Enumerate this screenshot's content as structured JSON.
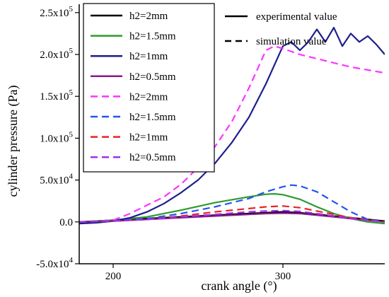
{
  "chart_data": {
    "type": "line",
    "title": "",
    "xlabel": "crank angle (°)",
    "ylabel": "cylinder pressure (Pa)",
    "xlim": [
      180,
      360
    ],
    "ylim": [
      -50000,
      260000
    ],
    "xticks": [
      200,
      300
    ],
    "xtick_labels": [
      "200",
      "300"
    ],
    "yticks": [
      -50000,
      0,
      50000,
      100000,
      150000,
      200000,
      250000
    ],
    "ytick_labels": [
      {
        "mantissa": "-5.0x10",
        "exp": "4"
      },
      {
        "mantissa": "0.0",
        "exp": ""
      },
      {
        "mantissa": "5.0x10",
        "exp": "4"
      },
      {
        "mantissa": "1.0x10",
        "exp": "5"
      },
      {
        "mantissa": "1.5x10",
        "exp": "5"
      },
      {
        "mantissa": "2.0x10",
        "exp": "5"
      },
      {
        "mantissa": "2.5x10",
        "exp": "5"
      }
    ],
    "legend_main": [
      {
        "label": "h2=2mm",
        "color": "#000000",
        "dash": "solid"
      },
      {
        "label": "h2=1.5mm",
        "color": "#2e9a2e",
        "dash": "solid"
      },
      {
        "label": "h2=1mm",
        "color": "#1e1e8c",
        "dash": "solid"
      },
      {
        "label": "h2=0.5mm",
        "color": "#8b1a8b",
        "dash": "solid"
      },
      {
        "label": "h2=2mm",
        "color": "#ff33ff",
        "dash": "dashed"
      },
      {
        "label": "h2=1.5mm",
        "color": "#2255ee",
        "dash": "dashed"
      },
      {
        "label": "h2=1mm",
        "color": "#ee2222",
        "dash": "dashed"
      },
      {
        "label": "h2=0.5mm",
        "color": "#9933ee",
        "dash": "dashed"
      }
    ],
    "legend_style": [
      {
        "label": "experimental value",
        "dash": "solid"
      },
      {
        "label": "simulation value",
        "dash": "dashed"
      }
    ],
    "series": [
      {
        "name": "h2=2mm",
        "kind": "experimental",
        "color": "#000000",
        "dash": "solid",
        "x": [
          180,
          200,
          220,
          240,
          260,
          280,
          290,
          300,
          310,
          320,
          340,
          360
        ],
        "y": [
          0,
          2000,
          4000,
          6000,
          8000,
          10000,
          11000,
          12000,
          11000,
          9000,
          5000,
          1000
        ]
      },
      {
        "name": "h2=1.5mm",
        "kind": "experimental",
        "color": "#2e9a2e",
        "dash": "solid",
        "x": [
          180,
          200,
          220,
          240,
          260,
          280,
          290,
          295,
          300,
          310,
          320,
          330,
          340,
          350,
          360
        ],
        "y": [
          0,
          2000,
          6000,
          14000,
          23000,
          30000,
          33000,
          33500,
          32500,
          27000,
          18000,
          10000,
          4000,
          0,
          -2000
        ]
      },
      {
        "name": "h2=1mm",
        "kind": "experimental",
        "color": "#1e1e8c",
        "dash": "solid",
        "x": [
          180,
          190,
          200,
          210,
          220,
          230,
          240,
          250,
          260,
          270,
          280,
          290,
          300,
          305,
          310,
          315,
          320,
          325,
          330,
          335,
          340,
          345,
          350,
          355,
          360
        ],
        "y": [
          -2000,
          -1000,
          1000,
          5000,
          12000,
          22000,
          35000,
          50000,
          70000,
          95000,
          125000,
          165000,
          210000,
          215000,
          205000,
          215000,
          230000,
          215000,
          232000,
          210000,
          225000,
          215000,
          222000,
          212000,
          200000
        ]
      },
      {
        "name": "h2=0.5mm",
        "kind": "experimental",
        "color": "#8b1a8b",
        "dash": "solid",
        "x": [
          180,
          200,
          220,
          240,
          260,
          280,
          290,
          300,
          310,
          320,
          340,
          360
        ],
        "y": [
          0,
          1000,
          3000,
          5000,
          7000,
          9000,
          10000,
          10500,
          10000,
          8000,
          4000,
          0
        ]
      },
      {
        "name": "h2=2mm",
        "kind": "simulation",
        "color": "#ff33ff",
        "dash": "dashed",
        "x": [
          180,
          190,
          200,
          210,
          220,
          230,
          240,
          250,
          260,
          270,
          280,
          290,
          295,
          300,
          310,
          320,
          340,
          360
        ],
        "y": [
          0,
          500,
          2000,
          10000,
          20000,
          30000,
          45000,
          65000,
          90000,
          120000,
          160000,
          205000,
          210000,
          207000,
          200000,
          195000,
          185000,
          178000
        ]
      },
      {
        "name": "h2=1.5mm",
        "kind": "simulation",
        "color": "#2255ee",
        "dash": "dashed",
        "x": [
          180,
          200,
          220,
          240,
          260,
          280,
          290,
          300,
          305,
          310,
          320,
          330,
          340,
          350,
          360
        ],
        "y": [
          0,
          1000,
          4000,
          10000,
          18000,
          28000,
          36000,
          42000,
          44000,
          43000,
          36000,
          24000,
          12000,
          3000,
          0
        ]
      },
      {
        "name": "h2=1mm",
        "kind": "simulation",
        "color": "#ee2222",
        "dash": "dashed",
        "x": [
          180,
          200,
          220,
          240,
          260,
          280,
          290,
          300,
          310,
          320,
          340,
          360
        ],
        "y": [
          0,
          1000,
          3000,
          7000,
          12000,
          16000,
          18000,
          19000,
          17000,
          13000,
          5000,
          0
        ]
      },
      {
        "name": "h2=0.5mm",
        "kind": "simulation",
        "color": "#9933ee",
        "dash": "dashed",
        "x": [
          180,
          200,
          220,
          240,
          260,
          280,
          290,
          300,
          310,
          320,
          340,
          360
        ],
        "y": [
          0,
          1000,
          3000,
          6000,
          9000,
          12000,
          13000,
          13500,
          12500,
          10000,
          4000,
          0
        ]
      }
    ],
    "grid": false,
    "legend_placement": "top-left inside plot; line-style key at top-right"
  }
}
